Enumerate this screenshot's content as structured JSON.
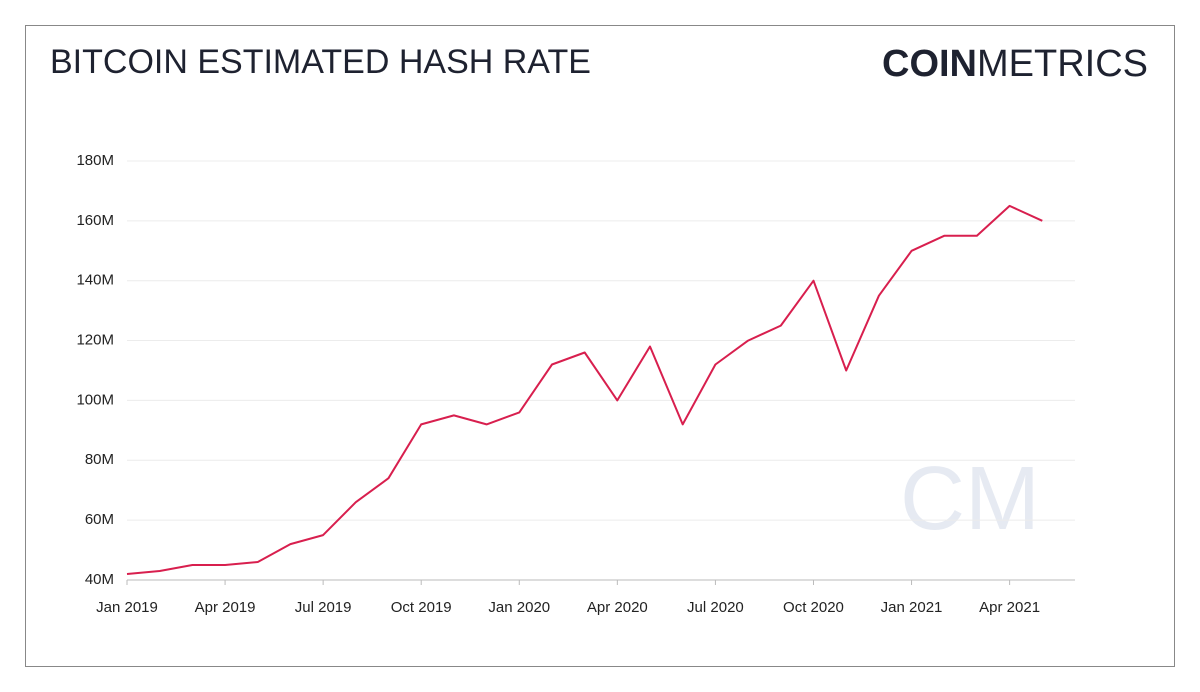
{
  "brand": {
    "bold": "COIN",
    "light": "METRICS"
  },
  "watermark": "CM",
  "chart_data": {
    "type": "line",
    "title": "BITCOIN ESTIMATED HASH RATE",
    "x": [
      "2019-01",
      "2019-02",
      "2019-03",
      "2019-04",
      "2019-05",
      "2019-06",
      "2019-07",
      "2019-08",
      "2019-09",
      "2019-10",
      "2019-11",
      "2019-12",
      "2020-01",
      "2020-02",
      "2020-03",
      "2020-04",
      "2020-05",
      "2020-06",
      "2020-07",
      "2020-08",
      "2020-09",
      "2020-10",
      "2020-11",
      "2020-12",
      "2021-01",
      "2021-02",
      "2021-03",
      "2021-04",
      "2021-05"
    ],
    "series": [
      {
        "name": "Hash Rate",
        "color": "#d81f4e",
        "values": [
          42000000,
          43000000,
          45000000,
          45000000,
          46000000,
          52000000,
          55000000,
          66000000,
          74000000,
          92000000,
          95000000,
          92000000,
          96000000,
          112000000,
          116000000,
          100000000,
          118000000,
          92000000,
          112000000,
          120000000,
          125000000,
          140000000,
          110000000,
          135000000,
          150000000,
          155000000,
          155000000,
          165000000,
          160000000
        ]
      }
    ],
    "xlim": [
      "2019-01",
      "2021-06"
    ],
    "xticks": [
      {
        "value": "2019-01",
        "label": "Jan 2019"
      },
      {
        "value": "2019-04",
        "label": "Apr 2019"
      },
      {
        "value": "2019-07",
        "label": "Jul 2019"
      },
      {
        "value": "2019-10",
        "label": "Oct 2019"
      },
      {
        "value": "2020-01",
        "label": "Jan 2020"
      },
      {
        "value": "2020-04",
        "label": "Apr 2020"
      },
      {
        "value": "2020-07",
        "label": "Jul 2020"
      },
      {
        "value": "2020-10",
        "label": "Oct 2020"
      },
      {
        "value": "2021-01",
        "label": "Jan 2021"
      },
      {
        "value": "2021-04",
        "label": "Apr 2021"
      }
    ],
    "ylim": [
      40000000,
      185000000
    ],
    "yticks": [
      {
        "value": 40000000,
        "label": "40M"
      },
      {
        "value": 60000000,
        "label": "60M"
      },
      {
        "value": 80000000,
        "label": "80M"
      },
      {
        "value": 100000000,
        "label": "100M"
      },
      {
        "value": 120000000,
        "label": "120M"
      },
      {
        "value": 140000000,
        "label": "140M"
      },
      {
        "value": 160000000,
        "label": "160M"
      },
      {
        "value": 180000000,
        "label": "180M"
      }
    ],
    "grid": true
  }
}
